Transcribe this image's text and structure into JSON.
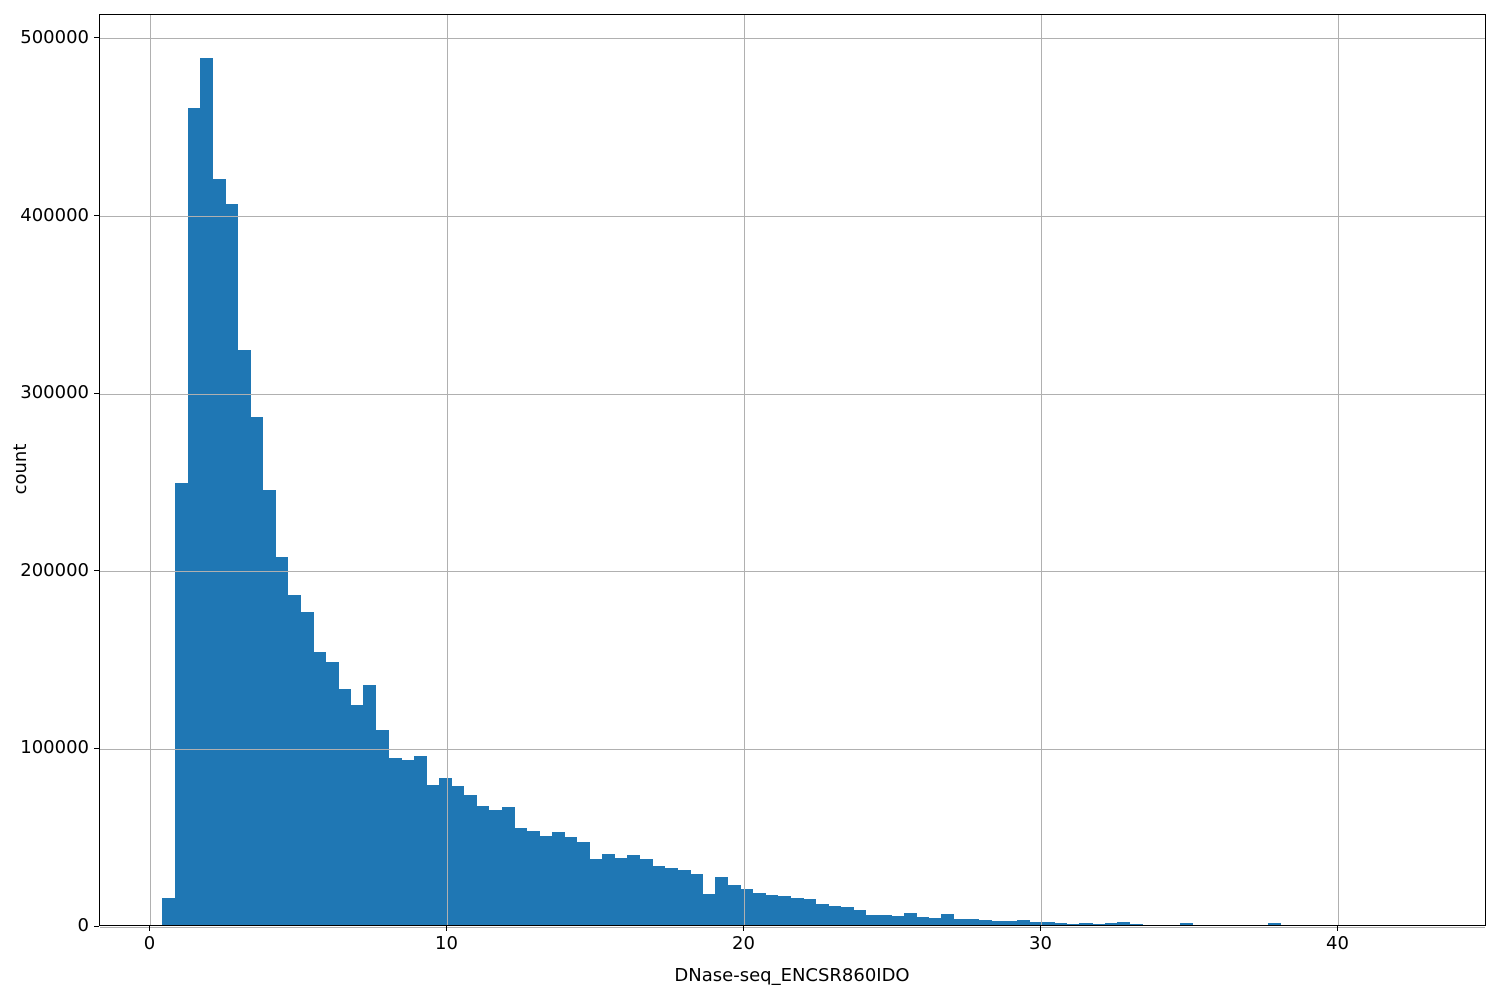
{
  "figure": {
    "background": "#ffffff",
    "bar_color": "#1f77b4",
    "grid_color": "#b0b0b0",
    "spine_color": "#000000",
    "text_color": "#000000"
  },
  "chart_data": {
    "type": "bar",
    "subtype": "histogram",
    "title": "",
    "xlabel": "DNase-seq_ENCSR860IDO",
    "ylabel": "count",
    "xlim": [
      -1.7,
      45.0
    ],
    "ylim": [
      0,
      513500
    ],
    "xticks": [
      0,
      10,
      20,
      30,
      40
    ],
    "yticks": [
      0,
      100000,
      200000,
      300000,
      400000,
      500000
    ],
    "grid": true,
    "grid_on_top": true,
    "legend": "none",
    "bin_start": 0.4,
    "bin_width": 0.423,
    "counts": [
      15000,
      249000,
      460000,
      488000,
      420000,
      406000,
      324000,
      286000,
      245000,
      207000,
      186000,
      176000,
      154000,
      148000,
      133000,
      124000,
      135000,
      110000,
      94000,
      93000,
      95000,
      79000,
      83000,
      78000,
      73000,
      67000,
      65000,
      66500,
      54500,
      53000,
      50000,
      52500,
      49500,
      47000,
      37000,
      40000,
      37500,
      39500,
      37000,
      33500,
      32000,
      30700,
      28800,
      17200,
      27000,
      22400,
      20000,
      18000,
      16800,
      16200,
      15000,
      14400,
      12000,
      10600,
      10200,
      8700,
      5900,
      5500,
      5000,
      6500,
      4500,
      3900,
      6200,
      3500,
      3500,
      2800,
      2400,
      2100,
      2800,
      1700,
      1500,
      1000,
      600,
      1100,
      400,
      1300,
      1800,
      600,
      0,
      0,
      0,
      1200,
      0,
      0,
      0,
      0,
      0,
      0,
      1200,
      0
    ]
  }
}
